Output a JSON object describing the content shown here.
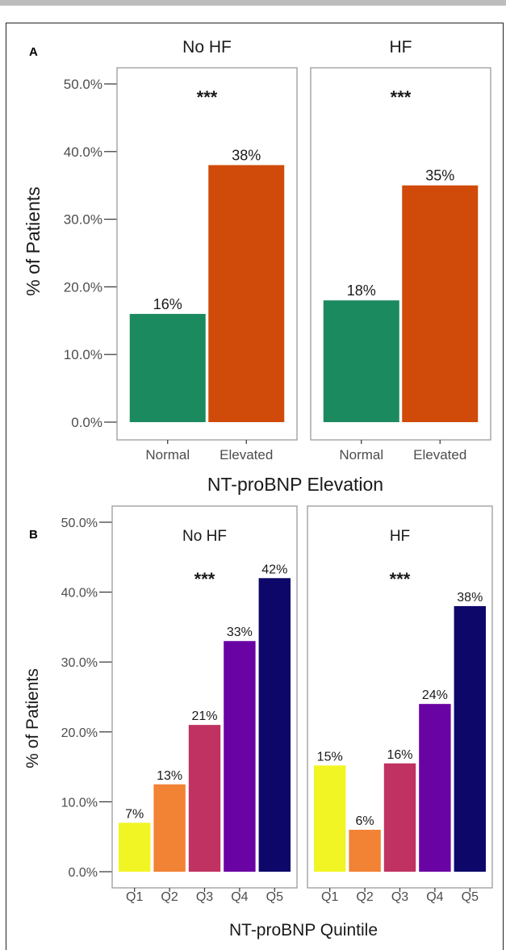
{
  "chart_data": [
    {
      "panel": "A",
      "type": "bar",
      "facets": [
        {
          "title": "No HF",
          "annotation": "***",
          "bars": [
            {
              "category": "Normal",
              "value": 16,
              "label": "16%",
              "color": "#1b8a5e"
            },
            {
              "category": "Elevated",
              "value": 38,
              "label": "38%",
              "color": "#d04a0a"
            }
          ]
        },
        {
          "title": "HF",
          "annotation": "***",
          "bars": [
            {
              "category": "Normal",
              "value": 18,
              "label": "18%",
              "color": "#1b8a5e"
            },
            {
              "category": "Elevated",
              "value": 35,
              "label": "35%",
              "color": "#d04a0a"
            }
          ]
        }
      ],
      "yticks": [
        "0.0%",
        "10.0%",
        "20.0%",
        "30.0%",
        "40.0%",
        "50.0%"
      ],
      "ylim": [
        0,
        50
      ],
      "ylabel": "% of Patients",
      "xlabel": "NT-proBNP Elevation"
    },
    {
      "panel": "B",
      "type": "bar",
      "facets": [
        {
          "title": "No HF",
          "annotation": "***",
          "bars": [
            {
              "category": "Q1",
              "value": 7,
              "label": "7%",
              "color": "#f1f524"
            },
            {
              "category": "Q2",
              "value": 12.5,
              "label": "13%",
              "color": "#f28234"
            },
            {
              "category": "Q3",
              "value": 21,
              "label": "21%",
              "color": "#c03262"
            },
            {
              "category": "Q4",
              "value": 33,
              "label": "33%",
              "color": "#6a03a3"
            },
            {
              "category": "Q5",
              "value": 42,
              "label": "42%",
              "color": "#0d0769"
            }
          ]
        },
        {
          "title": "HF",
          "annotation": "***",
          "bars": [
            {
              "category": "Q1",
              "value": 15.2,
              "label": "15%",
              "color": "#f1f524"
            },
            {
              "category": "Q2",
              "value": 6,
              "label": "6%",
              "color": "#f28234"
            },
            {
              "category": "Q3",
              "value": 15.5,
              "label": "16%",
              "color": "#c03262"
            },
            {
              "category": "Q4",
              "value": 24,
              "label": "24%",
              "color": "#6a03a3"
            },
            {
              "category": "Q5",
              "value": 38,
              "label": "38%",
              "color": "#0d0769"
            }
          ]
        }
      ],
      "yticks": [
        "0.0%",
        "10.0%",
        "20.0%",
        "30.0%",
        "40.0%",
        "50.0%"
      ],
      "ylim": [
        0,
        50
      ],
      "ylabel": "% of Patients",
      "xlabel": "NT-proBNP Quintile"
    }
  ]
}
